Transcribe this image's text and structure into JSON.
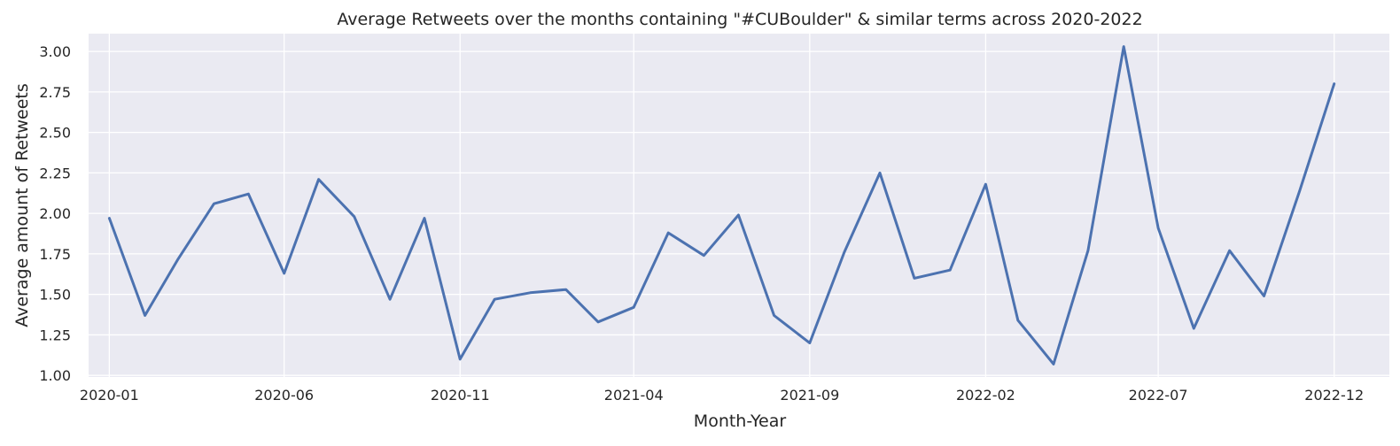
{
  "colors": {
    "plot_background": "#EAEAF2",
    "grid": "#FFFFFF",
    "line": "#4C72B0",
    "text": "#262626"
  },
  "chart_data": {
    "type": "line",
    "title": "Average Retweets over the months containing \"#CUBoulder\" & similar terms across 2020-2022",
    "xlabel": "Month-Year",
    "ylabel": "Average amount of Retweets",
    "x_tick_labels": [
      "2020-01",
      "2020-06",
      "2020-11",
      "2021-04",
      "2021-09",
      "2022-02",
      "2022-07",
      "2022-12"
    ],
    "y_tick_labels": [
      "1.00",
      "1.25",
      "1.50",
      "1.75",
      "2.00",
      "2.25",
      "2.50",
      "2.75",
      "3.00"
    ],
    "ylim": [
      0.99,
      3.11
    ],
    "xlim": [
      "2019-12-14",
      "2023-01-18"
    ],
    "grid": true,
    "series": [
      {
        "x": [
          "2020-01",
          "2020-02",
          "2020-03",
          "2020-04",
          "2020-05",
          "2020-06",
          "2020-07",
          "2020-08",
          "2020-09",
          "2020-10",
          "2020-11",
          "2020-12",
          "2021-01",
          "2021-02",
          "2021-03",
          "2021-04",
          "2021-05",
          "2021-06",
          "2021-07",
          "2021-08",
          "2021-09",
          "2021-10",
          "2021-11",
          "2021-12",
          "2022-01",
          "2022-02",
          "2022-03",
          "2022-04",
          "2022-05",
          "2022-06",
          "2022-07",
          "2022-08",
          "2022-09",
          "2022-10",
          "2022-11",
          "2022-12"
        ],
        "values": [
          1.97,
          1.37,
          1.72,
          2.06,
          2.12,
          1.63,
          2.21,
          1.98,
          1.47,
          1.97,
          1.1,
          1.47,
          1.51,
          1.53,
          1.33,
          1.42,
          1.88,
          1.74,
          1.99,
          1.37,
          1.2,
          1.76,
          2.25,
          1.6,
          1.65,
          2.18,
          1.34,
          1.07,
          1.77,
          3.03,
          1.91,
          1.29,
          1.77,
          1.49,
          2.14,
          2.8
        ]
      }
    ]
  }
}
